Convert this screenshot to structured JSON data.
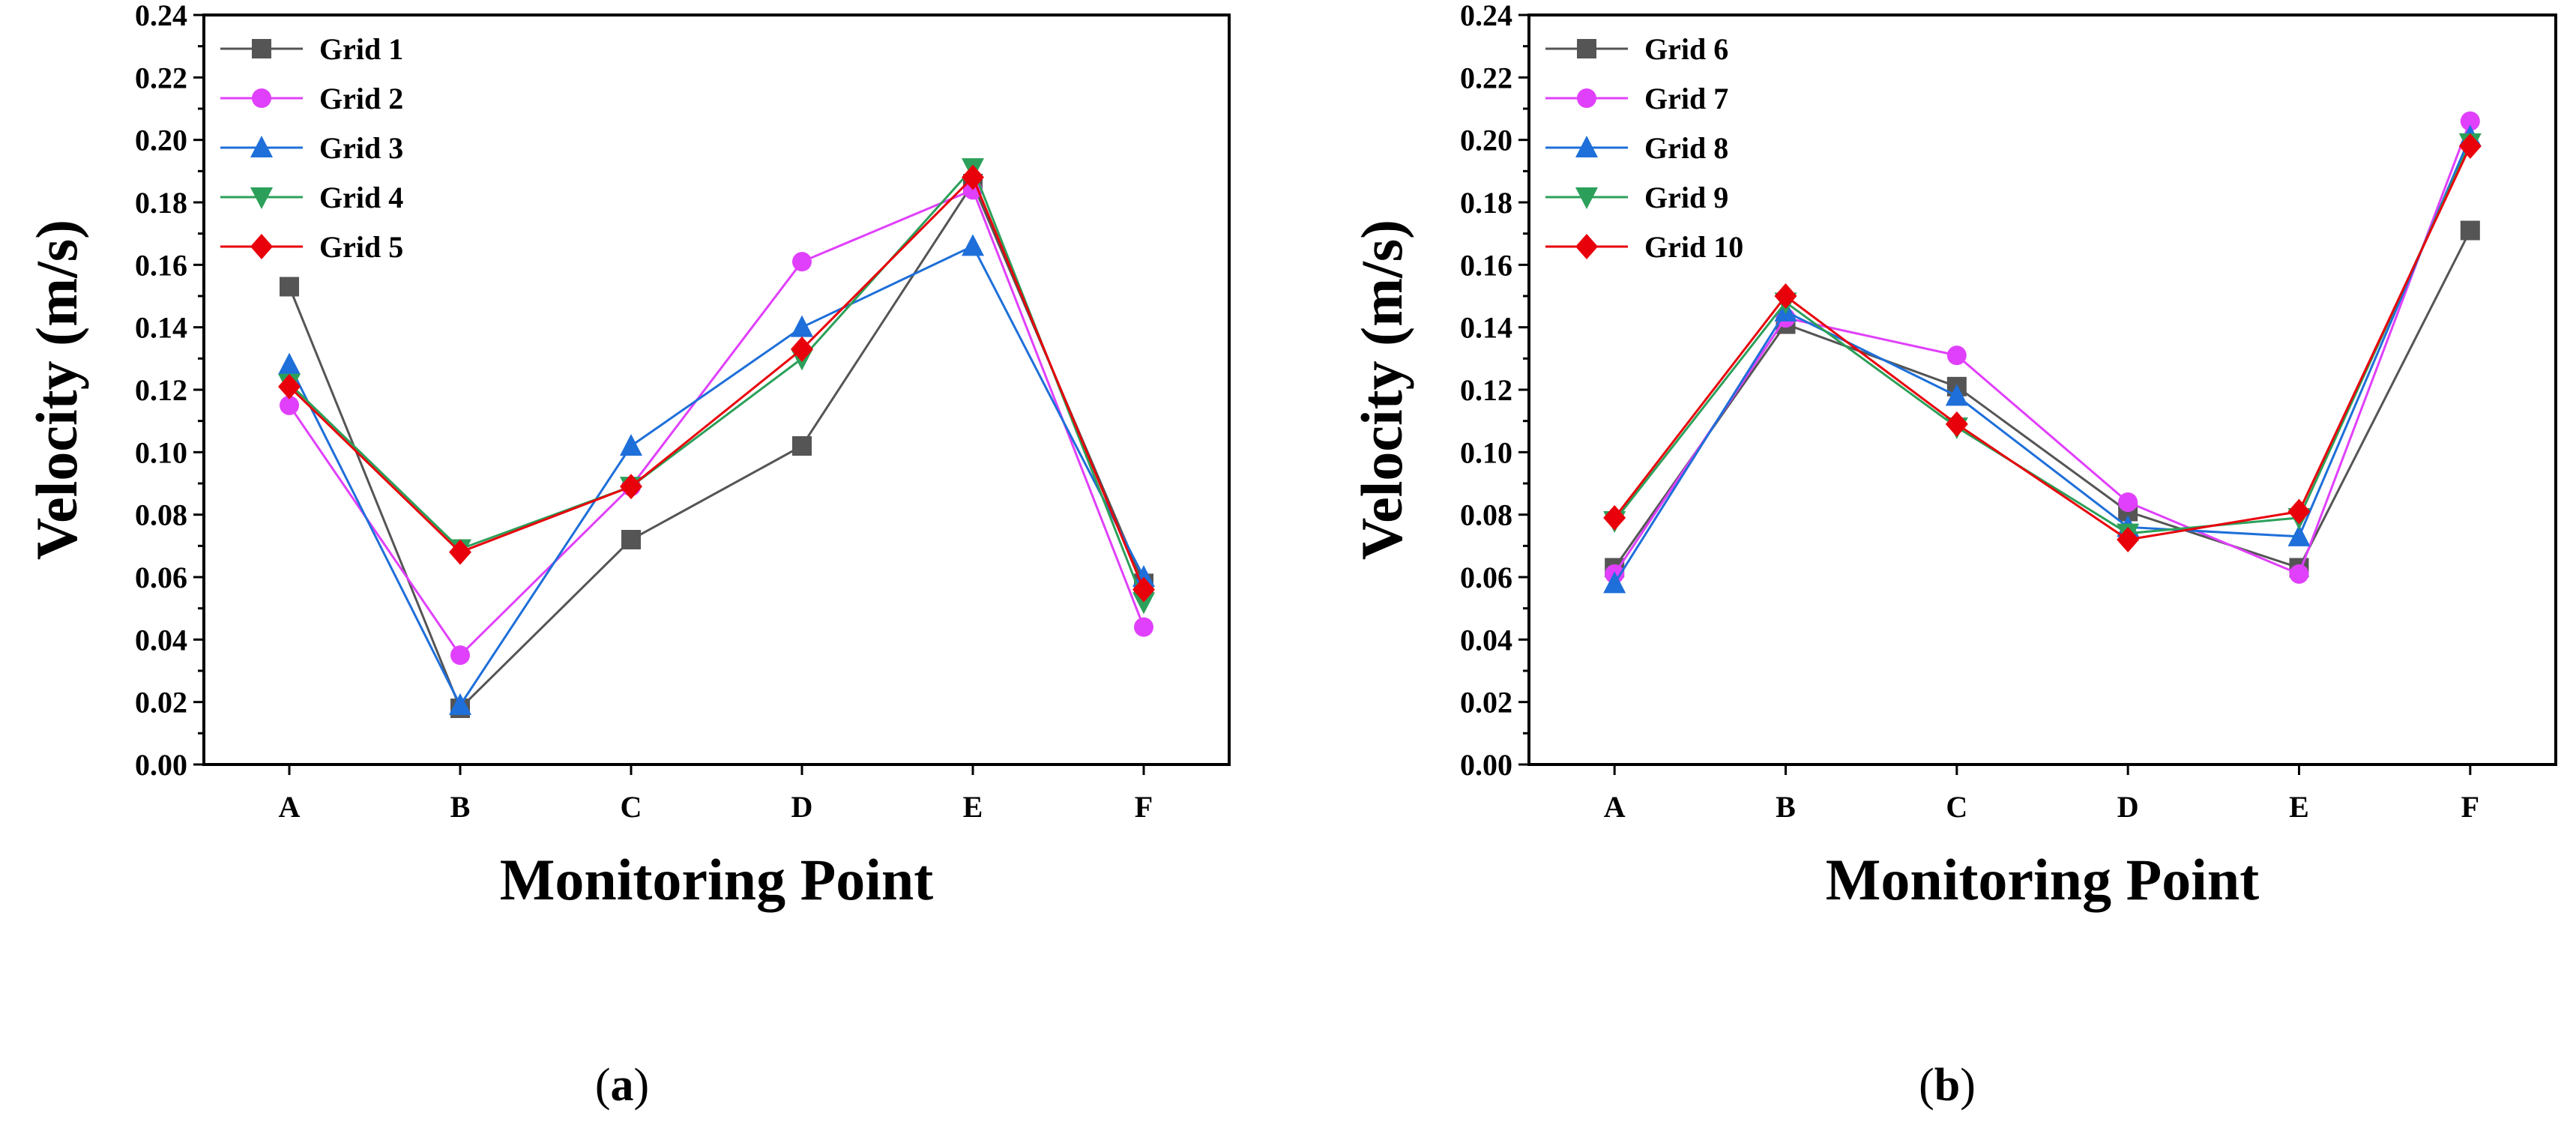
{
  "chart_data": [
    {
      "type": "line",
      "panel_label": "(a)",
      "panel_letter": "a",
      "xlabel": "Monitoring Point",
      "ylabel": "Velocity (m/s)",
      "categories": [
        "A",
        "B",
        "C",
        "D",
        "E",
        "F"
      ],
      "ylim": [
        0,
        0.24
      ],
      "yticks": [
        "0.00",
        "0.02",
        "0.04",
        "0.06",
        "0.08",
        "0.10",
        "0.12",
        "0.14",
        "0.16",
        "0.18",
        "0.20",
        "0.22",
        "0.24"
      ],
      "legend_position": "top-left",
      "grid": false,
      "series": [
        {
          "name": "Grid 1",
          "color": "#555555",
          "marker": "square",
          "values": [
            0.153,
            0.018,
            0.072,
            0.102,
            0.186,
            0.058
          ]
        },
        {
          "name": "Grid 2",
          "color": "#e040fb",
          "marker": "circle",
          "values": [
            0.115,
            0.035,
            0.089,
            0.161,
            0.184,
            0.044
          ]
        },
        {
          "name": "Grid 3",
          "color": "#1e6fd9",
          "marker": "triangle-up",
          "values": [
            0.128,
            0.019,
            0.102,
            0.14,
            0.166,
            0.06
          ]
        },
        {
          "name": "Grid 4",
          "color": "#2ca05a",
          "marker": "triangle-down",
          "values": [
            0.122,
            0.069,
            0.089,
            0.13,
            0.191,
            0.052
          ]
        },
        {
          "name": "Grid 5",
          "color": "#e8000b",
          "marker": "diamond",
          "values": [
            0.121,
            0.068,
            0.089,
            0.133,
            0.188,
            0.056
          ]
        }
      ]
    },
    {
      "type": "line",
      "panel_label": "(b)",
      "panel_letter": "b",
      "xlabel": "Monitoring Point",
      "ylabel": "Velocity (m/s)",
      "categories": [
        "A",
        "B",
        "C",
        "D",
        "E",
        "F"
      ],
      "ylim": [
        0,
        0.24
      ],
      "yticks": [
        "0.00",
        "0.02",
        "0.04",
        "0.06",
        "0.08",
        "0.10",
        "0.12",
        "0.14",
        "0.16",
        "0.18",
        "0.20",
        "0.22",
        "0.24"
      ],
      "legend_position": "top-left",
      "grid": false,
      "series": [
        {
          "name": "Grid 6",
          "color": "#555555",
          "marker": "square",
          "values": [
            0.063,
            0.141,
            0.121,
            0.081,
            0.063,
            0.171
          ]
        },
        {
          "name": "Grid 7",
          "color": "#e040fb",
          "marker": "circle",
          "values": [
            0.061,
            0.143,
            0.131,
            0.084,
            0.061,
            0.206
          ]
        },
        {
          "name": "Grid 8",
          "color": "#1e6fd9",
          "marker": "triangle-up",
          "values": [
            0.058,
            0.145,
            0.118,
            0.076,
            0.073,
            0.201
          ]
        },
        {
          "name": "Grid 9",
          "color": "#2ca05a",
          "marker": "triangle-down",
          "values": [
            0.078,
            0.148,
            0.108,
            0.074,
            0.079,
            0.199
          ]
        },
        {
          "name": "Grid 10",
          "color": "#e8000b",
          "marker": "diamond",
          "values": [
            0.079,
            0.15,
            0.109,
            0.072,
            0.081,
            0.198
          ]
        }
      ]
    }
  ]
}
